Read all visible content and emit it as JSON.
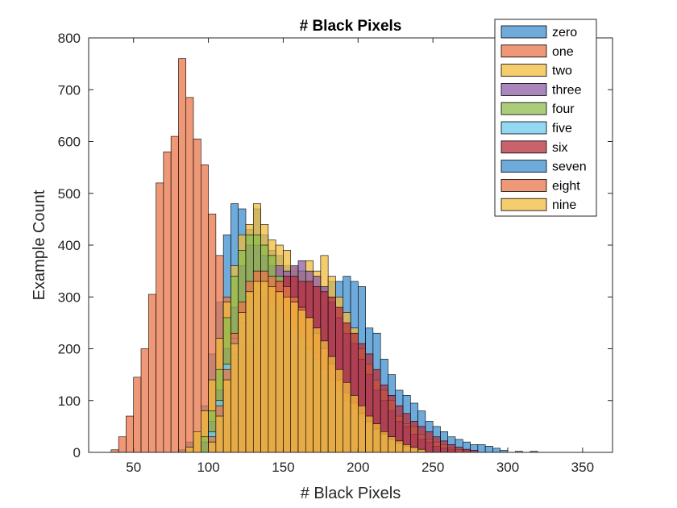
{
  "chart_data": {
    "type": "bar",
    "title": "# Black Pixels",
    "xlabel": "# Black Pixels",
    "ylabel": "Example Count",
    "xlim": [
      20,
      370
    ],
    "ylim": [
      0,
      800
    ],
    "xticks": [
      50,
      100,
      150,
      200,
      250,
      300,
      350
    ],
    "yticks": [
      0,
      100,
      200,
      300,
      400,
      500,
      600,
      700,
      800
    ],
    "bin_width": 5,
    "bar_alpha": 0.75,
    "legend_position": "top-right",
    "series": [
      {
        "name": "zero",
        "color": "#3d8fcf",
        "bins": [
          [
            80,
            5
          ],
          [
            85,
            20
          ],
          [
            90,
            35
          ],
          [
            95,
            90
          ],
          [
            100,
            190
          ],
          [
            105,
            290
          ],
          [
            110,
            420
          ],
          [
            115,
            480
          ],
          [
            120,
            470
          ],
          [
            125,
            430
          ],
          [
            130,
            470
          ],
          [
            135,
            420
          ],
          [
            140,
            390
          ],
          [
            145,
            380
          ],
          [
            150,
            360
          ],
          [
            155,
            350
          ],
          [
            160,
            350
          ],
          [
            165,
            330
          ],
          [
            170,
            320
          ],
          [
            175,
            320
          ],
          [
            180,
            330
          ],
          [
            185,
            330
          ],
          [
            190,
            340
          ],
          [
            195,
            330
          ],
          [
            200,
            320
          ],
          [
            205,
            240
          ],
          [
            210,
            230
          ],
          [
            215,
            180
          ],
          [
            220,
            150
          ],
          [
            225,
            120
          ],
          [
            230,
            110
          ],
          [
            235,
            95
          ],
          [
            240,
            80
          ],
          [
            245,
            60
          ],
          [
            250,
            50
          ],
          [
            255,
            40
          ],
          [
            260,
            30
          ],
          [
            265,
            25
          ],
          [
            270,
            20
          ],
          [
            275,
            15
          ],
          [
            280,
            15
          ],
          [
            285,
            12
          ],
          [
            290,
            8
          ],
          [
            295,
            4
          ],
          [
            305,
            2
          ],
          [
            315,
            2
          ]
        ]
      },
      {
        "name": "one",
        "color": "#e8764a",
        "bins": [
          [
            35,
            5
          ],
          [
            40,
            30
          ],
          [
            45,
            70
          ],
          [
            50,
            145
          ],
          [
            55,
            200
          ],
          [
            60,
            305
          ],
          [
            65,
            520
          ],
          [
            70,
            580
          ],
          [
            75,
            610
          ],
          [
            80,
            760
          ],
          [
            85,
            685
          ],
          [
            90,
            605
          ],
          [
            95,
            555
          ],
          [
            100,
            460
          ],
          [
            105,
            380
          ],
          [
            110,
            300
          ],
          [
            115,
            220
          ],
          [
            120,
            160
          ],
          [
            125,
            115
          ],
          [
            130,
            65
          ],
          [
            135,
            30
          ],
          [
            140,
            15
          ],
          [
            145,
            5
          ],
          [
            150,
            3
          ]
        ]
      },
      {
        "name": "two",
        "color": "#f2bb3e",
        "bins": [
          [
            85,
            10
          ],
          [
            90,
            40
          ],
          [
            95,
            80
          ],
          [
            100,
            140
          ],
          [
            105,
            220
          ],
          [
            110,
            290
          ],
          [
            115,
            360
          ],
          [
            120,
            420
          ],
          [
            125,
            440
          ],
          [
            130,
            480
          ],
          [
            135,
            440
          ],
          [
            140,
            410
          ],
          [
            145,
            400
          ],
          [
            150,
            390
          ],
          [
            155,
            360
          ],
          [
            160,
            350
          ],
          [
            165,
            370
          ],
          [
            170,
            350
          ],
          [
            175,
            380
          ],
          [
            180,
            340
          ],
          [
            185,
            300
          ],
          [
            190,
            270
          ],
          [
            195,
            240
          ],
          [
            200,
            200
          ],
          [
            205,
            170
          ],
          [
            210,
            140
          ],
          [
            215,
            120
          ],
          [
            220,
            100
          ],
          [
            225,
            70
          ],
          [
            230,
            55
          ],
          [
            235,
            50
          ],
          [
            240,
            35
          ],
          [
            245,
            25
          ],
          [
            250,
            20
          ],
          [
            255,
            15
          ],
          [
            260,
            8
          ],
          [
            265,
            5
          ],
          [
            270,
            3
          ]
        ]
      },
      {
        "name": "three",
        "color": "#8c5ea6",
        "bins": [
          [
            95,
            20
          ],
          [
            100,
            60
          ],
          [
            105,
            120
          ],
          [
            110,
            200
          ],
          [
            115,
            280
          ],
          [
            120,
            360
          ],
          [
            125,
            400
          ],
          [
            130,
            400
          ],
          [
            135,
            380
          ],
          [
            140,
            360
          ],
          [
            145,
            360
          ],
          [
            150,
            350
          ],
          [
            155,
            360
          ],
          [
            160,
            370
          ],
          [
            165,
            350
          ],
          [
            170,
            340
          ],
          [
            175,
            320
          ],
          [
            180,
            290
          ],
          [
            185,
            260
          ],
          [
            190,
            230
          ],
          [
            195,
            210
          ],
          [
            200,
            180
          ],
          [
            205,
            150
          ],
          [
            210,
            120
          ],
          [
            215,
            100
          ],
          [
            220,
            80
          ],
          [
            225,
            60
          ],
          [
            230,
            50
          ],
          [
            235,
            35
          ],
          [
            240,
            25
          ],
          [
            245,
            20
          ],
          [
            250,
            12
          ],
          [
            255,
            8
          ],
          [
            260,
            5
          ]
        ]
      },
      {
        "name": "four",
        "color": "#8fbc4e",
        "bins": [
          [
            95,
            30
          ],
          [
            100,
            80
          ],
          [
            105,
            160
          ],
          [
            110,
            260
          ],
          [
            115,
            340
          ],
          [
            120,
            390
          ],
          [
            125,
            420
          ],
          [
            130,
            420
          ],
          [
            135,
            400
          ],
          [
            140,
            380
          ],
          [
            145,
            340
          ],
          [
            150,
            310
          ],
          [
            155,
            280
          ],
          [
            160,
            250
          ],
          [
            165,
            220
          ],
          [
            170,
            190
          ],
          [
            175,
            160
          ],
          [
            180,
            130
          ],
          [
            185,
            110
          ],
          [
            190,
            90
          ],
          [
            195,
            70
          ],
          [
            200,
            55
          ],
          [
            205,
            40
          ],
          [
            210,
            30
          ],
          [
            215,
            20
          ],
          [
            220,
            15
          ],
          [
            225,
            10
          ],
          [
            230,
            5
          ]
        ]
      },
      {
        "name": "five",
        "color": "#6fcbee",
        "bins": [
          [
            100,
            40
          ],
          [
            105,
            100
          ],
          [
            110,
            170
          ],
          [
            115,
            220
          ],
          [
            120,
            260
          ],
          [
            125,
            280
          ],
          [
            130,
            290
          ],
          [
            135,
            290
          ],
          [
            140,
            280
          ],
          [
            145,
            270
          ],
          [
            150,
            250
          ],
          [
            155,
            230
          ],
          [
            160,
            210
          ],
          [
            165,
            190
          ],
          [
            170,
            170
          ],
          [
            175,
            150
          ],
          [
            180,
            130
          ],
          [
            185,
            110
          ],
          [
            190,
            90
          ],
          [
            195,
            75
          ],
          [
            200,
            60
          ],
          [
            205,
            45
          ],
          [
            210,
            35
          ],
          [
            215,
            25
          ],
          [
            220,
            18
          ],
          [
            225,
            12
          ],
          [
            230,
            8
          ]
        ]
      },
      {
        "name": "six",
        "color": "#b52f3e",
        "bins": [
          [
            110,
            20
          ],
          [
            115,
            60
          ],
          [
            120,
            120
          ],
          [
            125,
            200
          ],
          [
            130,
            260
          ],
          [
            135,
            300
          ],
          [
            140,
            320
          ],
          [
            145,
            330
          ],
          [
            150,
            340
          ],
          [
            155,
            340
          ],
          [
            160,
            330
          ],
          [
            165,
            330
          ],
          [
            170,
            320
          ],
          [
            175,
            310
          ],
          [
            180,
            300
          ],
          [
            185,
            280
          ],
          [
            190,
            250
          ],
          [
            195,
            230
          ],
          [
            200,
            210
          ],
          [
            205,
            190
          ],
          [
            210,
            160
          ],
          [
            215,
            130
          ],
          [
            220,
            110
          ],
          [
            225,
            90
          ],
          [
            230,
            75
          ],
          [
            235,
            60
          ],
          [
            240,
            50
          ],
          [
            245,
            40
          ],
          [
            250,
            30
          ],
          [
            255,
            22
          ],
          [
            260,
            15
          ],
          [
            265,
            10
          ],
          [
            270,
            6
          ],
          [
            275,
            4
          ]
        ]
      },
      {
        "name": "seven",
        "color": "#3d8fcf",
        "bins": [
          [
            100,
            20
          ],
          [
            105,
            60
          ],
          [
            110,
            120
          ],
          [
            115,
            190
          ],
          [
            120,
            250
          ],
          [
            125,
            300
          ],
          [
            130,
            310
          ],
          [
            135,
            300
          ],
          [
            140,
            290
          ],
          [
            145,
            280
          ],
          [
            150,
            260
          ],
          [
            155,
            240
          ],
          [
            160,
            220
          ],
          [
            165,
            200
          ],
          [
            170,
            180
          ],
          [
            175,
            160
          ],
          [
            180,
            140
          ],
          [
            185,
            120
          ],
          [
            190,
            100
          ],
          [
            195,
            85
          ],
          [
            200,
            70
          ],
          [
            205,
            55
          ],
          [
            210,
            45
          ],
          [
            215,
            35
          ],
          [
            220,
            25
          ],
          [
            225,
            18
          ],
          [
            230,
            12
          ],
          [
            235,
            8
          ]
        ]
      },
      {
        "name": "eight",
        "color": "#e8764a",
        "bins": [
          [
            100,
            30
          ],
          [
            105,
            90
          ],
          [
            110,
            160
          ],
          [
            115,
            230
          ],
          [
            120,
            290
          ],
          [
            125,
            330
          ],
          [
            130,
            350
          ],
          [
            135,
            350
          ],
          [
            140,
            340
          ],
          [
            145,
            330
          ],
          [
            150,
            320
          ],
          [
            155,
            300
          ],
          [
            160,
            280
          ],
          [
            165,
            260
          ],
          [
            170,
            230
          ],
          [
            175,
            200
          ],
          [
            180,
            170
          ],
          [
            185,
            140
          ],
          [
            190,
            115
          ],
          [
            195,
            95
          ],
          [
            200,
            75
          ],
          [
            205,
            60
          ],
          [
            210,
            45
          ],
          [
            215,
            35
          ],
          [
            220,
            25
          ],
          [
            225,
            18
          ],
          [
            230,
            12
          ],
          [
            235,
            8
          ],
          [
            240,
            5
          ]
        ]
      },
      {
        "name": "nine",
        "color": "#f2bb3e",
        "bins": [
          [
            100,
            20
          ],
          [
            105,
            70
          ],
          [
            110,
            140
          ],
          [
            115,
            210
          ],
          [
            120,
            270
          ],
          [
            125,
            310
          ],
          [
            130,
            330
          ],
          [
            135,
            330
          ],
          [
            140,
            320
          ],
          [
            145,
            310
          ],
          [
            150,
            300
          ],
          [
            155,
            290
          ],
          [
            160,
            275
          ],
          [
            165,
            260
          ],
          [
            170,
            240
          ],
          [
            175,
            215
          ],
          [
            180,
            185
          ],
          [
            185,
            160
          ],
          [
            190,
            135
          ],
          [
            195,
            110
          ],
          [
            200,
            90
          ],
          [
            205,
            70
          ],
          [
            210,
            55
          ],
          [
            215,
            40
          ],
          [
            220,
            30
          ],
          [
            225,
            22
          ],
          [
            230,
            15
          ],
          [
            235,
            10
          ],
          [
            240,
            6
          ]
        ]
      }
    ]
  }
}
